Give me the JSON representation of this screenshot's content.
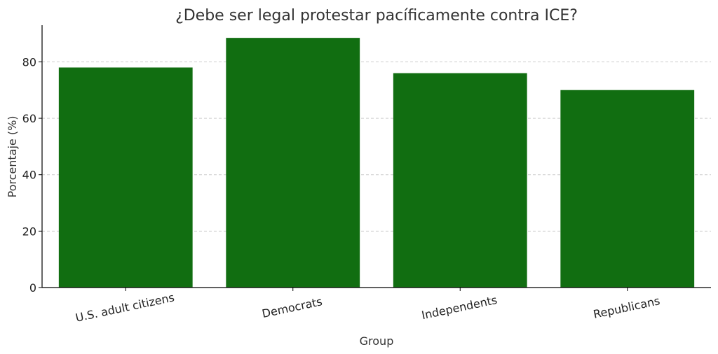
{
  "chart_data": {
    "type": "bar",
    "title": "¿Debe ser legal protestar pacíficamente contra ICE?",
    "xlabel": "Group",
    "ylabel": "Porcentaje (%)",
    "categories": [
      "U.S. adult citizens",
      "Democrats",
      "Independents",
      "Republicans"
    ],
    "values": [
      78,
      88.5,
      76,
      70
    ],
    "ylim": [
      0,
      93
    ],
    "yticks": [
      0,
      20,
      40,
      60,
      80
    ],
    "grid": "horizontal dashed",
    "bar_color": "#116e11"
  }
}
